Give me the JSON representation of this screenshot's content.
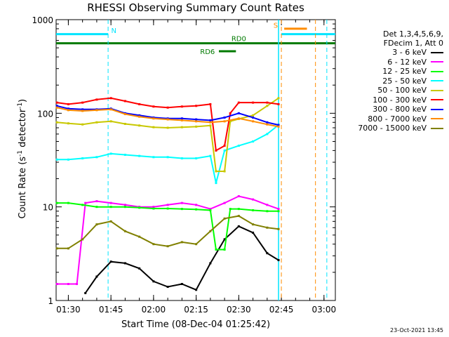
{
  "title": "RHESSI Observing Summary Count Rates",
  "xlabel": "Start Time (08-Dec-04 01:25:42)",
  "ylabel_main": "Count Rate (s",
  "ylabel_sup1": "-1",
  "ylabel_mid": " detector",
  "ylabel_sup2": "-1",
  "ylabel_end": ")",
  "timestamp": "23-Oct-2021 13:45",
  "legend": {
    "header1": "Det 1,3,4,5,6,9,",
    "header2": "FDecim 1, Att 0"
  },
  "chart_data": {
    "type": "line",
    "title": "RHESSI Observing Summary Count Rates",
    "xlabel": "Start Time (08-Dec-04 01:25:42)",
    "ylabel": "Count Rate (s^-1 detector^-1)",
    "yscale": "log",
    "xlim": [
      "01:25:42",
      "03:04:00"
    ],
    "ylim": [
      1,
      1000
    ],
    "x_ticks": [
      "01:30",
      "01:45",
      "02:00",
      "02:15",
      "02:30",
      "02:45",
      "03:00"
    ],
    "y_ticks": [
      "1",
      "10",
      "100",
      "1000"
    ],
    "markers": [
      {
        "label": "N",
        "time": "01:44",
        "color": "#00e5ff",
        "style": "dashed"
      },
      {
        "label": "S",
        "time": "02:45",
        "color": "#ff8c00",
        "style": "dashed"
      }
    ],
    "annotations": [
      {
        "label": "RD0",
        "color": "#007a00"
      },
      {
        "label": "RD6",
        "color": "#007a00"
      },
      {
        "label": "N",
        "color": "#00e5ff"
      },
      {
        "label": "S",
        "color": "#ff8c00"
      }
    ],
    "series": [
      {
        "name": "3 - 6 keV",
        "color": "#000000",
        "points": [
          [
            "01:36",
            1.2
          ],
          [
            "01:40",
            1.8
          ],
          [
            "01:45",
            2.6
          ],
          [
            "01:50",
            2.5
          ],
          [
            "01:55",
            2.2
          ],
          [
            "02:00",
            1.6
          ],
          [
            "02:05",
            1.4
          ],
          [
            "02:10",
            1.5
          ],
          [
            "02:15",
            1.3
          ],
          [
            "02:20",
            2.5
          ],
          [
            "02:25",
            4.5
          ],
          [
            "02:30",
            6.2
          ],
          [
            "02:35",
            5.3
          ],
          [
            "02:40",
            3.2
          ],
          [
            "02:44",
            2.7
          ]
        ]
      },
      {
        "name": "6 - 12 keV",
        "color": "#ff00ff",
        "points": [
          [
            "01:26",
            1.5
          ],
          [
            "01:30",
            1.5
          ],
          [
            "01:33",
            1.5
          ],
          [
            "01:36",
            11
          ],
          [
            "01:40",
            11.5
          ],
          [
            "01:45",
            11
          ],
          [
            "01:50",
            10.5
          ],
          [
            "01:55",
            10
          ],
          [
            "02:00",
            10
          ],
          [
            "02:05",
            10.5
          ],
          [
            "02:10",
            11
          ],
          [
            "02:15",
            10.5
          ],
          [
            "02:20",
            9.5
          ],
          [
            "02:25",
            11
          ],
          [
            "02:30",
            13
          ],
          [
            "02:35",
            12
          ],
          [
            "02:40",
            10.5
          ],
          [
            "02:44",
            9.5
          ]
        ]
      },
      {
        "name": "12 - 25 keV",
        "color": "#00ff00",
        "points": [
          [
            "01:26",
            11
          ],
          [
            "01:30",
            11
          ],
          [
            "01:35",
            10.5
          ],
          [
            "01:40",
            10
          ],
          [
            "01:45",
            10
          ],
          [
            "01:50",
            10
          ],
          [
            "01:55",
            9.8
          ],
          [
            "02:00",
            9.6
          ],
          [
            "02:05",
            9.6
          ],
          [
            "02:10",
            9.5
          ],
          [
            "02:15",
            9.4
          ],
          [
            "02:20",
            9.2
          ],
          [
            "02:22",
            3.5
          ],
          [
            "02:25",
            3.5
          ],
          [
            "02:27",
            9.5
          ],
          [
            "02:30",
            9.5
          ],
          [
            "02:35",
            9.2
          ],
          [
            "02:40",
            9.0
          ],
          [
            "02:44",
            9.0
          ]
        ]
      },
      {
        "name": "25 - 50 keV",
        "color": "#00ffff",
        "points": [
          [
            "01:26",
            32
          ],
          [
            "01:30",
            32
          ],
          [
            "01:35",
            33
          ],
          [
            "01:40",
            34
          ],
          [
            "01:45",
            37
          ],
          [
            "01:50",
            36
          ],
          [
            "01:55",
            35
          ],
          [
            "02:00",
            34
          ],
          [
            "02:05",
            34
          ],
          [
            "02:10",
            33
          ],
          [
            "02:15",
            33
          ],
          [
            "02:20",
            35
          ],
          [
            "02:22",
            18
          ],
          [
            "02:25",
            40
          ],
          [
            "02:30",
            45
          ],
          [
            "02:35",
            50
          ],
          [
            "02:40",
            60
          ],
          [
            "02:44",
            75
          ]
        ]
      },
      {
        "name": "50 - 100 keV",
        "color": "#c8c800",
        "points": [
          [
            "01:26",
            80
          ],
          [
            "01:30",
            78
          ],
          [
            "01:35",
            76
          ],
          [
            "01:40",
            80
          ],
          [
            "01:45",
            82
          ],
          [
            "01:50",
            77
          ],
          [
            "01:55",
            74
          ],
          [
            "02:00",
            71
          ],
          [
            "02:05",
            70
          ],
          [
            "02:10",
            71
          ],
          [
            "02:15",
            72
          ],
          [
            "02:20",
            74
          ],
          [
            "02:22",
            24
          ],
          [
            "02:25",
            24
          ],
          [
            "02:27",
            82
          ],
          [
            "02:30",
            87
          ],
          [
            "02:35",
            95
          ],
          [
            "02:40",
            120
          ],
          [
            "02:44",
            145
          ]
        ]
      },
      {
        "name": "100 - 300 keV",
        "color": "#ff0000",
        "points": [
          [
            "01:26",
            130
          ],
          [
            "01:30",
            125
          ],
          [
            "01:35",
            130
          ],
          [
            "01:40",
            140
          ],
          [
            "01:45",
            145
          ],
          [
            "01:50",
            135
          ],
          [
            "01:55",
            125
          ],
          [
            "02:00",
            118
          ],
          [
            "02:05",
            115
          ],
          [
            "02:10",
            118
          ],
          [
            "02:15",
            120
          ],
          [
            "02:20",
            125
          ],
          [
            "02:22",
            40
          ],
          [
            "02:25",
            45
          ],
          [
            "02:27",
            100
          ],
          [
            "02:30",
            130
          ],
          [
            "02:35",
            130
          ],
          [
            "02:40",
            130
          ],
          [
            "02:44",
            125
          ]
        ]
      },
      {
        "name": "300 - 800 keV",
        "color": "#0000ff",
        "points": [
          [
            "01:26",
            120
          ],
          [
            "01:30",
            112
          ],
          [
            "01:35",
            110
          ],
          [
            "01:40",
            110
          ],
          [
            "01:45",
            112
          ],
          [
            "01:50",
            100
          ],
          [
            "01:55",
            95
          ],
          [
            "02:00",
            90
          ],
          [
            "02:05",
            88
          ],
          [
            "02:10",
            88
          ],
          [
            "02:15",
            86
          ],
          [
            "02:20",
            84
          ],
          [
            "02:25",
            90
          ],
          [
            "02:30",
            100
          ],
          [
            "02:35",
            90
          ],
          [
            "02:40",
            80
          ],
          [
            "02:44",
            75
          ]
        ]
      },
      {
        "name": "800 - 7000 keV",
        "color": "#ff8c00",
        "points": [
          [
            "01:26",
            115
          ],
          [
            "01:30",
            108
          ],
          [
            "01:35",
            106
          ],
          [
            "01:40",
            108
          ],
          [
            "01:45",
            110
          ],
          [
            "01:50",
            98
          ],
          [
            "01:55",
            92
          ],
          [
            "02:00",
            88
          ],
          [
            "02:05",
            86
          ],
          [
            "02:10",
            84
          ],
          [
            "02:15",
            82
          ],
          [
            "02:20",
            80
          ],
          [
            "02:25",
            82
          ],
          [
            "02:30",
            88
          ],
          [
            "02:35",
            82
          ],
          [
            "02:40",
            76
          ],
          [
            "02:44",
            72
          ]
        ]
      },
      {
        "name": "7000 - 15000 keV",
        "color": "#808000",
        "points": [
          [
            "01:26",
            3.6
          ],
          [
            "01:30",
            3.6
          ],
          [
            "01:35",
            4.5
          ],
          [
            "01:40",
            6.5
          ],
          [
            "01:45",
            7.0
          ],
          [
            "01:50",
            5.5
          ],
          [
            "01:55",
            4.8
          ],
          [
            "02:00",
            4.0
          ],
          [
            "02:05",
            3.8
          ],
          [
            "02:10",
            4.2
          ],
          [
            "02:15",
            4.0
          ],
          [
            "02:20",
            5.5
          ],
          [
            "02:25",
            7.5
          ],
          [
            "02:30",
            8.0
          ],
          [
            "02:35",
            6.5
          ],
          [
            "02:40",
            6.0
          ],
          [
            "02:44",
            5.8
          ]
        ]
      }
    ]
  }
}
